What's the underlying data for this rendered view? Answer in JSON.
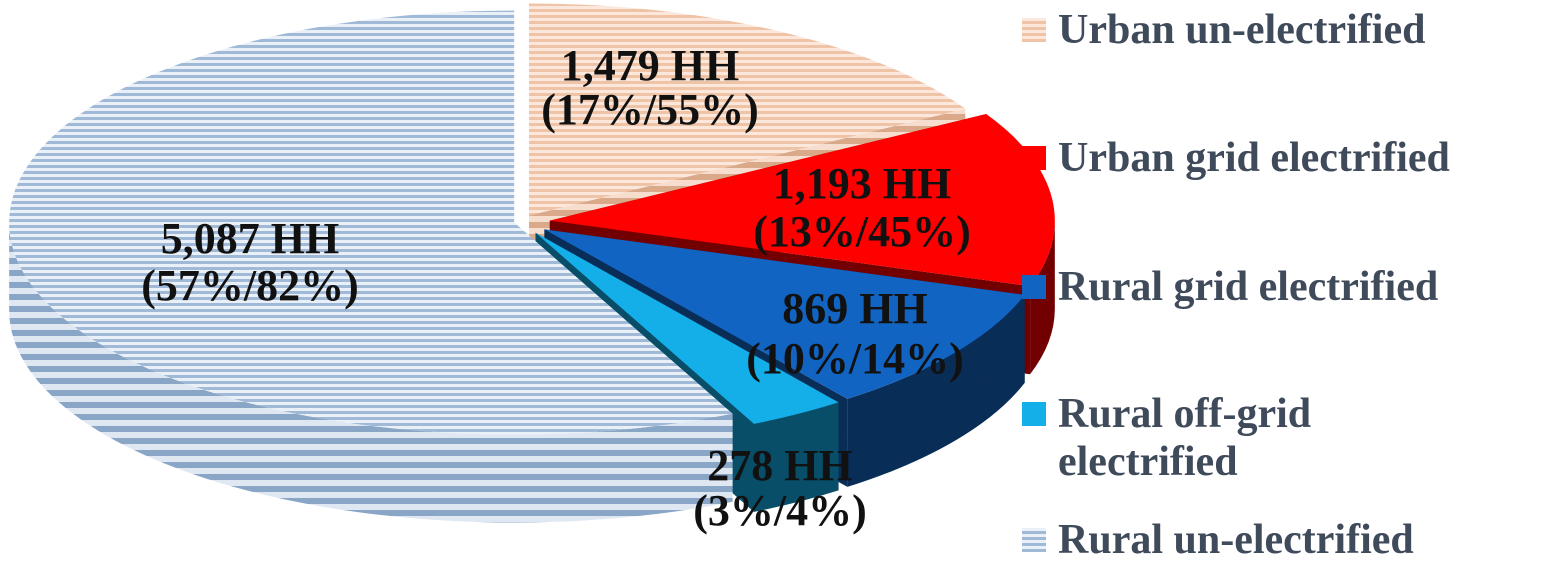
{
  "chart_data": {
    "type": "pie",
    "title": "",
    "slices": [
      {
        "name": "Urban un-electrified",
        "value": 1479,
        "label_line1": "1,479 HH",
        "label_line2": "(17%/55%)",
        "color": "#f3c9ae",
        "pattern": "stripes"
      },
      {
        "name": "Urban grid electrified",
        "value": 1193,
        "label_line1": "1,193 HH",
        "label_line2": "(13%/45%)",
        "color": "#ff0000",
        "pattern": "solid"
      },
      {
        "name": "Rural grid electrified",
        "value": 869,
        "label_line1": "869 HH",
        "label_line2": "(10%/14%)",
        "color": "#1264c2",
        "pattern": "solid"
      },
      {
        "name": "Rural off-grid electrified",
        "value": 278,
        "label_line1": "278 HH",
        "label_line2": "(3%/4%)",
        "color": "#14aee8",
        "pattern": "solid"
      },
      {
        "name": "Rural un-electrified",
        "value": 5087,
        "label_line1": "5,087 HH",
        "label_line2": "(57%/82%)",
        "color": "#a9c0d9",
        "pattern": "stripes"
      }
    ],
    "legend_placement": "right"
  }
}
